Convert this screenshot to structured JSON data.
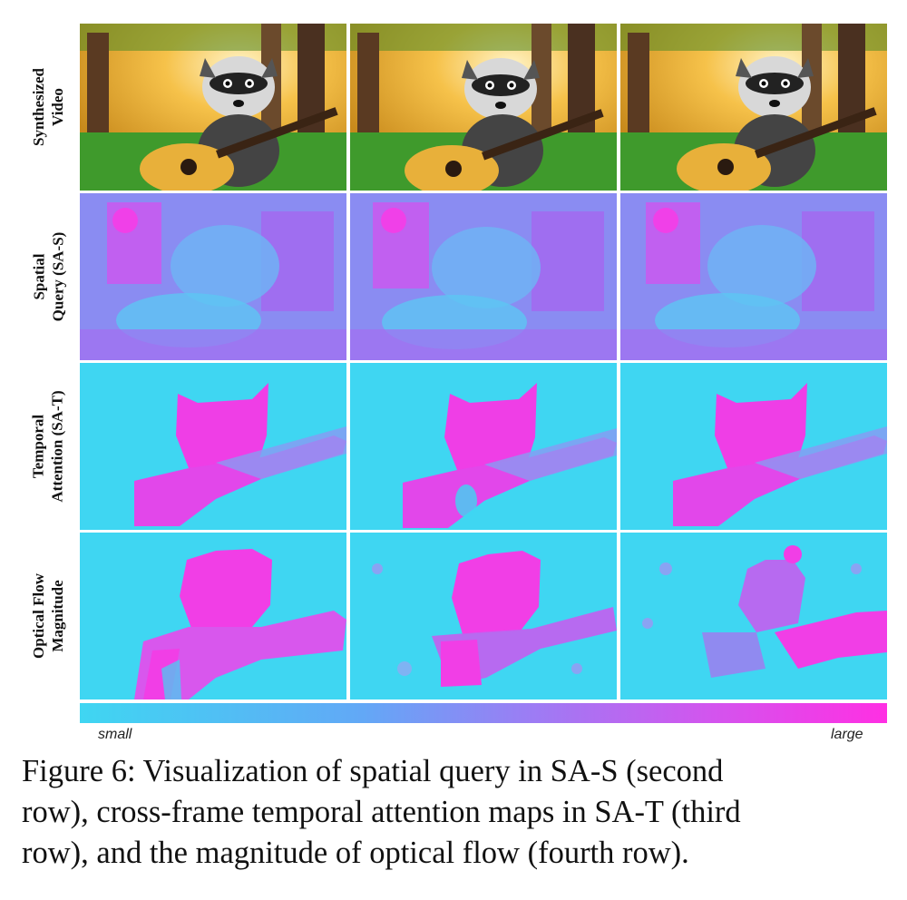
{
  "row_labels": [
    {
      "line1": "Synthesized",
      "line2": "Video"
    },
    {
      "line1": "Spatial",
      "line2": "Query (SA-S)"
    },
    {
      "line1": "Temporal",
      "line2": "Attention (SA-T)"
    },
    {
      "line1": "Optical Flow",
      "line2": "Magnitude"
    }
  ],
  "colorbar": {
    "min_label": "small",
    "max_label": "large"
  },
  "caption": {
    "line1": "Figure 6: Visualization of spatial query in SA-S (second",
    "line2": "row), cross-frame temporal attention maps in SA-T (third",
    "line3": "row), and the magnitude of optical flow (fourth row)."
  },
  "colors": {
    "small": "#3fd6f2",
    "large": "#ff2fe3",
    "grass": "#3f9a2c",
    "sky": "#f3b23a"
  }
}
